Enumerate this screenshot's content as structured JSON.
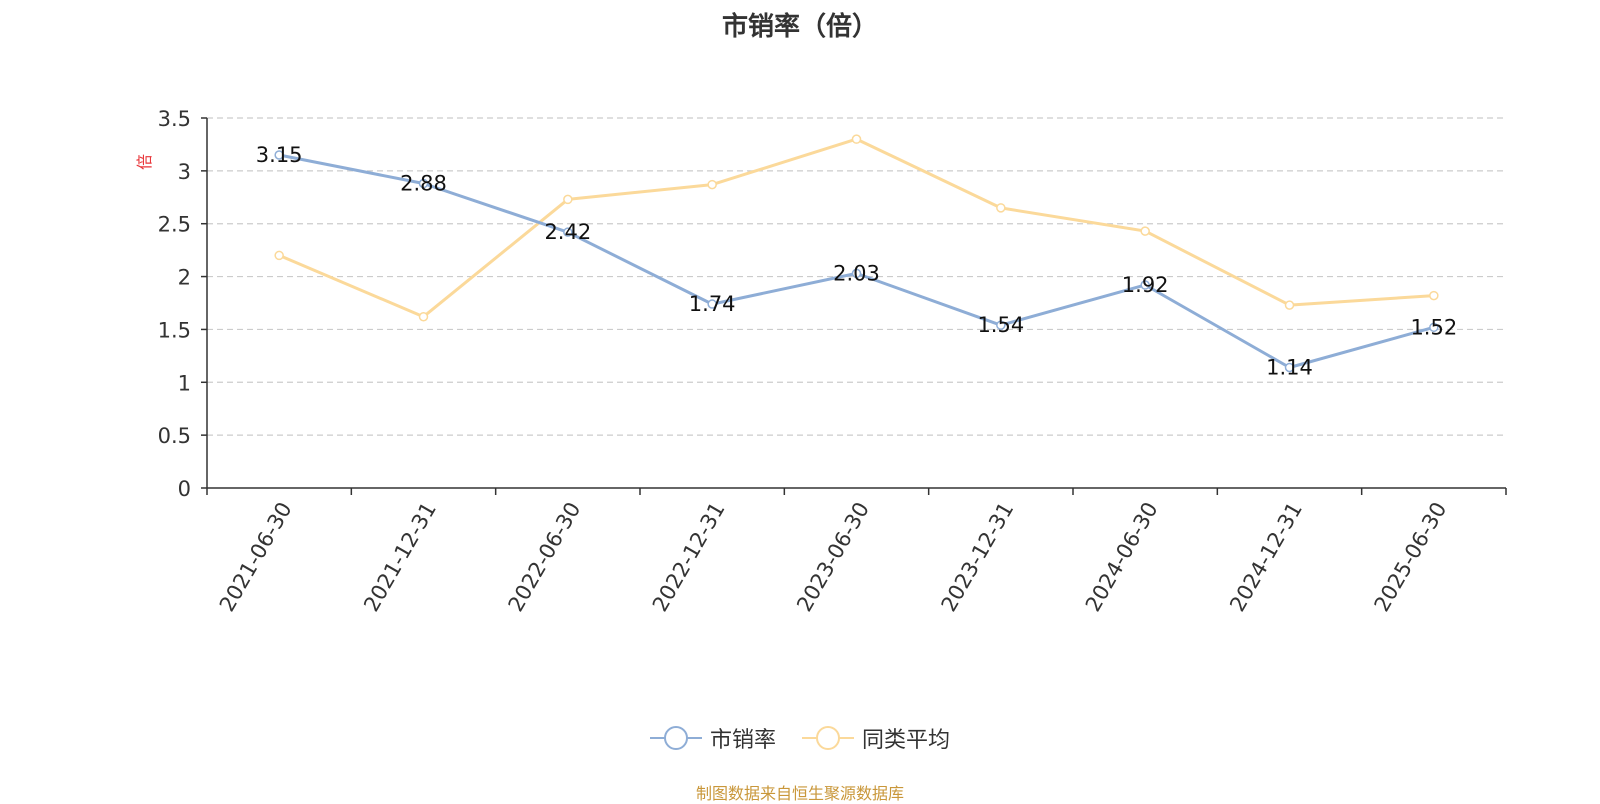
{
  "chart_data": {
    "type": "line",
    "title": "市销率（倍）",
    "ylabel": "倍",
    "xlabel": "",
    "categories": [
      "2021-06-30",
      "2021-12-31",
      "2022-06-30",
      "2022-12-31",
      "2023-06-30",
      "2023-12-31",
      "2024-06-30",
      "2024-12-31",
      "2025-06-30"
    ],
    "ylim": [
      0,
      3.5
    ],
    "yticks": [
      "0",
      "0.5",
      "1",
      "1.5",
      "2",
      "2.5",
      "3",
      "3.5"
    ],
    "grid": true,
    "legend_position": "bottom",
    "series": [
      {
        "name": "市销率",
        "color": "#8eadd6",
        "values": [
          3.15,
          2.88,
          2.42,
          1.74,
          2.03,
          1.54,
          1.92,
          1.14,
          1.52
        ],
        "data_labels": [
          "3.15",
          "2.88",
          "2.42",
          "1.74",
          "2.03",
          "1.54",
          "1.92",
          "1.14",
          "1.52"
        ]
      },
      {
        "name": "同类平均",
        "color": "#fbd99a",
        "values": [
          2.2,
          1.62,
          2.73,
          2.87,
          3.3,
          2.65,
          2.43,
          1.73,
          1.82
        ]
      }
    ]
  },
  "source_note": "制图数据来自恒生聚源数据库"
}
